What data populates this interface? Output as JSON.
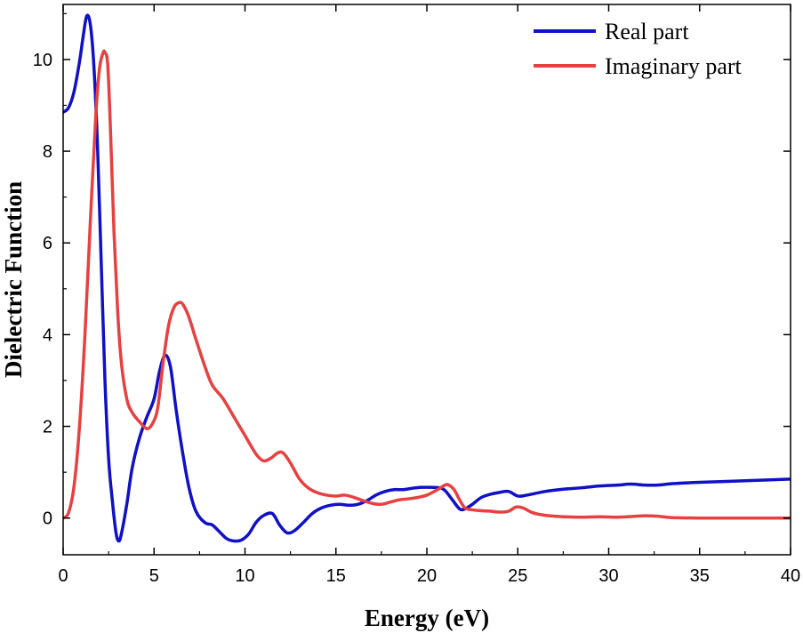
{
  "chart_data": {
    "type": "line",
    "xlabel": "Energy (eV)",
    "ylabel": "Dielectric Function",
    "xlim": [
      0,
      40
    ],
    "ylim": [
      -0.8,
      11.2
    ],
    "xticks": [
      0,
      5,
      10,
      15,
      20,
      25,
      30,
      35,
      40
    ],
    "yticks": [
      0,
      2,
      4,
      6,
      8,
      10
    ],
    "grid": false,
    "legend_position": "top-right",
    "series": [
      {
        "name": "Real part",
        "color": "#1010c8",
        "x": [
          0,
          0.3,
          0.6,
          0.9,
          1.1,
          1.3,
          1.5,
          1.7,
          1.9,
          2.1,
          2.3,
          2.5,
          2.7,
          2.9,
          3.05,
          3.2,
          3.5,
          3.8,
          4.2,
          4.6,
          5.0,
          5.3,
          5.6,
          5.9,
          6.2,
          6.5,
          6.9,
          7.3,
          7.8,
          8.2,
          8.6,
          9.0,
          9.4,
          9.8,
          10.2,
          10.6,
          11.0,
          11.5,
          11.9,
          12.3,
          12.7,
          13.2,
          13.7,
          14.2,
          14.7,
          15.2,
          15.7,
          16.2,
          16.7,
          17.2,
          17.7,
          18.2,
          18.7,
          19.2,
          19.7,
          20.2,
          20.7,
          21.0,
          21.4,
          21.8,
          22.1,
          22.5,
          23.0,
          23.5,
          24.0,
          24.5,
          25.0,
          25.5,
          26.5,
          27.5,
          28.5,
          29.5,
          30.5,
          31.2,
          32.0,
          32.7,
          33.5,
          35.0,
          36.5,
          38.0,
          40.0
        ],
        "y": [
          8.85,
          8.95,
          9.3,
          9.95,
          10.5,
          10.95,
          10.75,
          9.8,
          8.0,
          5.5,
          3.0,
          1.3,
          0.4,
          -0.3,
          -0.5,
          -0.35,
          0.3,
          1.1,
          1.75,
          2.2,
          2.6,
          3.2,
          3.55,
          3.3,
          2.4,
          1.6,
          0.7,
          0.15,
          -0.1,
          -0.15,
          -0.3,
          -0.45,
          -0.5,
          -0.48,
          -0.35,
          -0.1,
          0.05,
          0.1,
          -0.15,
          -0.32,
          -0.28,
          -0.1,
          0.1,
          0.22,
          0.28,
          0.3,
          0.28,
          0.3,
          0.38,
          0.5,
          0.58,
          0.62,
          0.62,
          0.65,
          0.67,
          0.67,
          0.66,
          0.6,
          0.4,
          0.2,
          0.2,
          0.3,
          0.45,
          0.52,
          0.56,
          0.58,
          0.48,
          0.5,
          0.58,
          0.63,
          0.66,
          0.7,
          0.72,
          0.74,
          0.72,
          0.72,
          0.75,
          0.78,
          0.8,
          0.82,
          0.85
        ]
      },
      {
        "name": "Imaginary part",
        "color": "#e84040",
        "x": [
          0,
          0.3,
          0.6,
          0.9,
          1.2,
          1.5,
          1.8,
          2.0,
          2.2,
          2.3,
          2.45,
          2.6,
          2.8,
          3.0,
          3.2,
          3.5,
          3.8,
          4.2,
          4.6,
          4.9,
          5.2,
          5.5,
          5.8,
          6.1,
          6.4,
          6.6,
          6.9,
          7.3,
          7.8,
          8.2,
          8.8,
          9.4,
          10.0,
          10.6,
          11.0,
          11.4,
          11.8,
          12.1,
          12.5,
          13.0,
          13.5,
          14.0,
          14.5,
          15.0,
          15.5,
          16.0,
          16.5,
          17.0,
          17.5,
          18.0,
          18.5,
          19.0,
          19.5,
          20.0,
          20.5,
          21.0,
          21.2,
          21.5,
          21.8,
          22.1,
          22.5,
          23.0,
          23.5,
          24.0,
          24.5,
          24.9,
          25.3,
          25.8,
          26.5,
          27.5,
          28.5,
          29.5,
          30.5,
          31.5,
          32.0,
          32.7,
          33.5,
          35.0,
          36.5,
          38.0,
          40.0
        ],
        "y": [
          0.0,
          0.12,
          0.7,
          2.0,
          4.0,
          6.5,
          8.8,
          9.8,
          10.15,
          10.15,
          9.9,
          8.5,
          6.2,
          4.5,
          3.4,
          2.6,
          2.3,
          2.1,
          1.95,
          2.05,
          2.4,
          3.4,
          4.2,
          4.6,
          4.7,
          4.65,
          4.4,
          3.9,
          3.3,
          2.9,
          2.6,
          2.2,
          1.8,
          1.4,
          1.25,
          1.3,
          1.42,
          1.42,
          1.2,
          0.85,
          0.65,
          0.55,
          0.5,
          0.48,
          0.5,
          0.45,
          0.38,
          0.32,
          0.3,
          0.35,
          0.4,
          0.42,
          0.45,
          0.5,
          0.6,
          0.72,
          0.72,
          0.62,
          0.4,
          0.22,
          0.18,
          0.16,
          0.15,
          0.13,
          0.15,
          0.24,
          0.22,
          0.12,
          0.06,
          0.03,
          0.02,
          0.03,
          0.02,
          0.04,
          0.05,
          0.04,
          0.01,
          0.0,
          0.0,
          0.0,
          0.0
        ]
      }
    ]
  }
}
